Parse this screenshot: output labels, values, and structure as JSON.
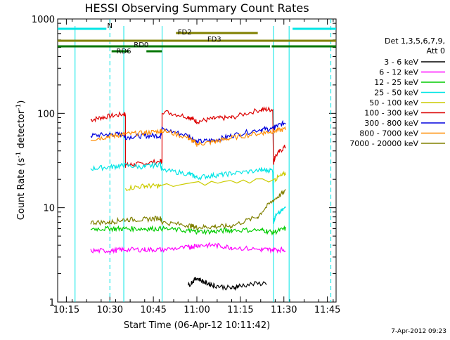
{
  "chart_data": {
    "type": "line",
    "title": "HESSI Observing Summary Count Rates",
    "xlabel": "Start Time (06-Apr-12 10:11:42)",
    "ylabel_main": "Count Rate (s",
    "ylabel_sup1": "-1",
    "ylabel_mid": " detector",
    "ylabel_sup2": "-1",
    "ylabel_end": ")",
    "yscale": "log",
    "ylim": [
      1,
      1000
    ],
    "xlim_minutes": [
      10.2,
      11.8
    ],
    "x_ticks": [
      "10:15",
      "10:30",
      "10:45",
      "11:00",
      "11:15",
      "11:30",
      "11:45"
    ],
    "x_tick_values": [
      10.25,
      10.5,
      10.75,
      11.0,
      11.25,
      11.5,
      11.75
    ],
    "y_ticks": [
      "1",
      "10",
      "100",
      "1000"
    ],
    "y_tick_values": [
      1,
      10,
      100,
      1000
    ],
    "legend": {
      "placement": "right",
      "title_line1": "Det 1,3,5,6,7,9,",
      "title_line2": "Att 0",
      "entries": [
        {
          "label": "3 - 6 keV",
          "color": "#000000"
        },
        {
          "label": "6 - 12 keV",
          "color": "#ff00ff"
        },
        {
          "label": "12 - 25 keV",
          "color": "#00cc00"
        },
        {
          "label": "25 - 50 keV",
          "color": "#00e5e5"
        },
        {
          "label": "50 - 100 keV",
          "color": "#cccc00"
        },
        {
          "label": "100 - 300 keV",
          "color": "#dd0000"
        },
        {
          "label": "300 - 800 keV",
          "color": "#0000dd"
        },
        {
          "label": "800 - 7000 keV",
          "color": "#ff8c00"
        },
        {
          "label": "7000 - 20000 keV",
          "color": "#808000"
        }
      ]
    },
    "flag_bars": [
      {
        "label": "N",
        "color": "#00e5e5",
        "segments": [
          [
            10.2,
            10.48
          ],
          [
            11.55,
            11.8
          ]
        ]
      },
      {
        "label": "FD2",
        "color": "#808000",
        "segments": [
          [
            10.88,
            11.35
          ]
        ]
      },
      {
        "label": "FD3",
        "color": "#808000",
        "segments": [
          [
            10.2,
            11.8
          ]
        ]
      },
      {
        "label": "RD0",
        "color": "#007700",
        "segments": [
          [
            10.2,
            11.42
          ],
          [
            11.43,
            11.8
          ]
        ]
      },
      {
        "label": "RD6",
        "color": "#007700",
        "segments": [
          [
            10.51,
            10.61
          ],
          [
            10.71,
            10.8
          ]
        ]
      }
    ],
    "dashed_markers": [
      10.5,
      11.77
    ],
    "solid_markers": [
      10.3,
      10.58,
      10.8,
      11.44,
      11.53
    ],
    "series": [
      {
        "name": "100 - 300 keV",
        "color": "#dd0000",
        "x": [
          10.39,
          10.47,
          10.58,
          10.59,
          10.66,
          10.79,
          10.8,
          10.95,
          11.0,
          11.1,
          11.2,
          11.37,
          11.44,
          11.45,
          11.51
        ],
        "y": [
          85,
          92,
          98,
          28,
          29,
          31,
          105,
          92,
          82,
          88,
          90,
          110,
          30,
          35,
          45
        ]
      },
      {
        "name": "300 - 800 keV",
        "color": "#0000dd",
        "x": [
          10.39,
          10.5,
          10.58,
          10.59,
          10.7,
          10.79,
          10.8,
          10.95,
          11.0,
          11.1,
          11.2,
          11.37,
          11.44,
          11.45,
          11.51
        ],
        "y": [
          58,
          60,
          60,
          56,
          58,
          58,
          68,
          58,
          50,
          52,
          58,
          68,
          68,
          72,
          80
        ]
      },
      {
        "name": "800 - 7000 keV",
        "color": "#ff8c00",
        "x": [
          10.39,
          10.5,
          10.58,
          10.7,
          10.79,
          10.8,
          10.95,
          11.0,
          11.1,
          11.2,
          11.37,
          11.44,
          11.51
        ],
        "y": [
          53,
          57,
          60,
          62,
          65,
          66,
          55,
          47,
          50,
          55,
          62,
          65,
          68
        ]
      },
      {
        "name": "25 - 50 keV",
        "color": "#00e5e5",
        "x": [
          10.39,
          10.5,
          10.58,
          10.7,
          10.79,
          10.8,
          10.95,
          11.0,
          11.1,
          11.2,
          11.37,
          11.44,
          11.45,
          11.51
        ],
        "y": [
          26,
          27,
          28,
          27,
          29,
          25,
          23,
          21,
          22,
          23,
          25,
          7,
          8,
          10
        ]
      },
      {
        "name": "50 - 100 keV",
        "color": "#cccc00",
        "x": [
          10.59,
          10.7,
          10.79,
          11.45,
          11.51
        ],
        "y": [
          16,
          17,
          17,
          20,
          23
        ]
      },
      {
        "name": "7000 - 20000 keV",
        "color": "#808000",
        "x": [
          10.39,
          10.5,
          10.58,
          10.7,
          10.79,
          10.8,
          10.95,
          11.0,
          11.1,
          11.2,
          11.35,
          11.44,
          11.51
        ],
        "y": [
          7,
          7,
          7.5,
          7.5,
          7.8,
          7,
          6.5,
          6.2,
          6.3,
          6.4,
          8,
          12,
          15
        ]
      },
      {
        "name": "12 - 25 keV",
        "color": "#00cc00",
        "x": [
          10.39,
          10.5,
          10.58,
          10.7,
          10.8,
          10.95,
          11.0,
          11.1,
          11.2,
          11.37,
          11.44,
          11.51
        ],
        "y": [
          6,
          6,
          6,
          6,
          6,
          5.7,
          5.6,
          5.6,
          5.8,
          5.8,
          5.5,
          6
        ]
      },
      {
        "name": "6 - 12 keV",
        "color": "#ff00ff",
        "x": [
          10.39,
          10.5,
          10.58,
          10.7,
          10.8,
          10.95,
          11.0,
          11.1,
          11.2,
          11.37,
          11.44,
          11.51
        ],
        "y": [
          3.5,
          3.5,
          3.6,
          3.6,
          3.6,
          3.8,
          4,
          4,
          3.8,
          3.6,
          3.6,
          3.6
        ]
      },
      {
        "name": "3 - 6 keV",
        "color": "#000000",
        "x": [
          10.95,
          11.0,
          11.05,
          11.1,
          11.2,
          11.25,
          11.4
        ],
        "y": [
          1.5,
          1.8,
          1.6,
          1.5,
          1.4,
          1.5,
          1.6
        ]
      }
    ]
  },
  "footer_timestamp": "7-Apr-2012 09:23"
}
